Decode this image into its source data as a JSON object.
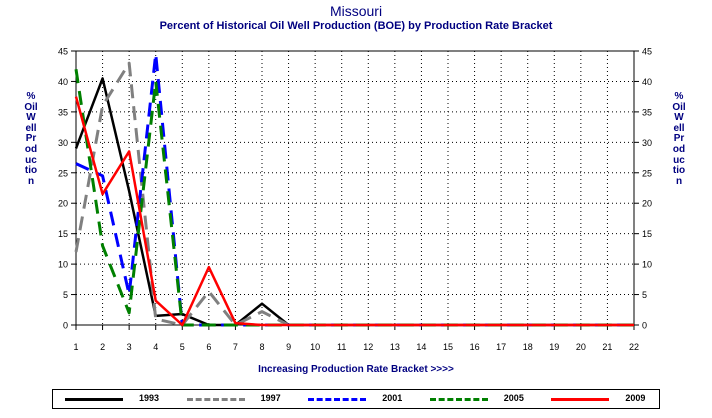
{
  "chart_data": {
    "type": "line",
    "title": "Missouri",
    "subtitle": "Percent of Historical Oil Well Production (BOE) by Production Rate Bracket",
    "xlabel": "Increasing Production Rate Bracket >>>>",
    "ylabel": "% Oil Well Production",
    "x": [
      1,
      2,
      3,
      4,
      5,
      6,
      7,
      8,
      9,
      10,
      11,
      12,
      13,
      14,
      15,
      16,
      17,
      18,
      19,
      20,
      21,
      22
    ],
    "xlim": [
      1,
      22
    ],
    "ylim": [
      0,
      45
    ],
    "yticks": [
      0,
      5,
      10,
      15,
      20,
      25,
      30,
      35,
      40,
      45
    ],
    "grid": true,
    "legend_position": "bottom",
    "series": [
      {
        "name": "1993",
        "color": "#000000",
        "dash": "solid",
        "values": [
          29,
          40.5,
          22,
          1.5,
          1.8,
          0,
          0,
          3.5,
          0,
          0,
          0,
          0,
          0,
          0,
          0,
          0,
          0,
          0,
          0,
          0,
          0,
          0
        ]
      },
      {
        "name": "1997",
        "color": "#808080",
        "dash": "dashed",
        "values": [
          12,
          36,
          43,
          1,
          0,
          5.5,
          0,
          2.2,
          0,
          0,
          0,
          0,
          0,
          0,
          0,
          0,
          0,
          0,
          0,
          0,
          0,
          0
        ]
      },
      {
        "name": "2001",
        "color": "#0000ff",
        "dash": "dashed",
        "values": [
          26.5,
          24.5,
          5,
          44.5,
          0,
          0,
          0,
          0,
          0,
          0,
          0,
          0,
          0,
          0,
          0,
          0,
          0,
          0,
          0,
          0,
          0,
          0
        ]
      },
      {
        "name": "2005",
        "color": "#008000",
        "dash": "dashed",
        "values": [
          42,
          13,
          2,
          40,
          0,
          0,
          0,
          0,
          0,
          0,
          0,
          0,
          0,
          0,
          0,
          0,
          0,
          0,
          0,
          0,
          0,
          0
        ]
      },
      {
        "name": "2009",
        "color": "#ff0000",
        "dash": "solid",
        "values": [
          37.5,
          21.5,
          28.5,
          4,
          0,
          9.5,
          0.3,
          0,
          0,
          0,
          0,
          0,
          0,
          0,
          0,
          0,
          0,
          0,
          0,
          0,
          0,
          0
        ]
      }
    ]
  }
}
